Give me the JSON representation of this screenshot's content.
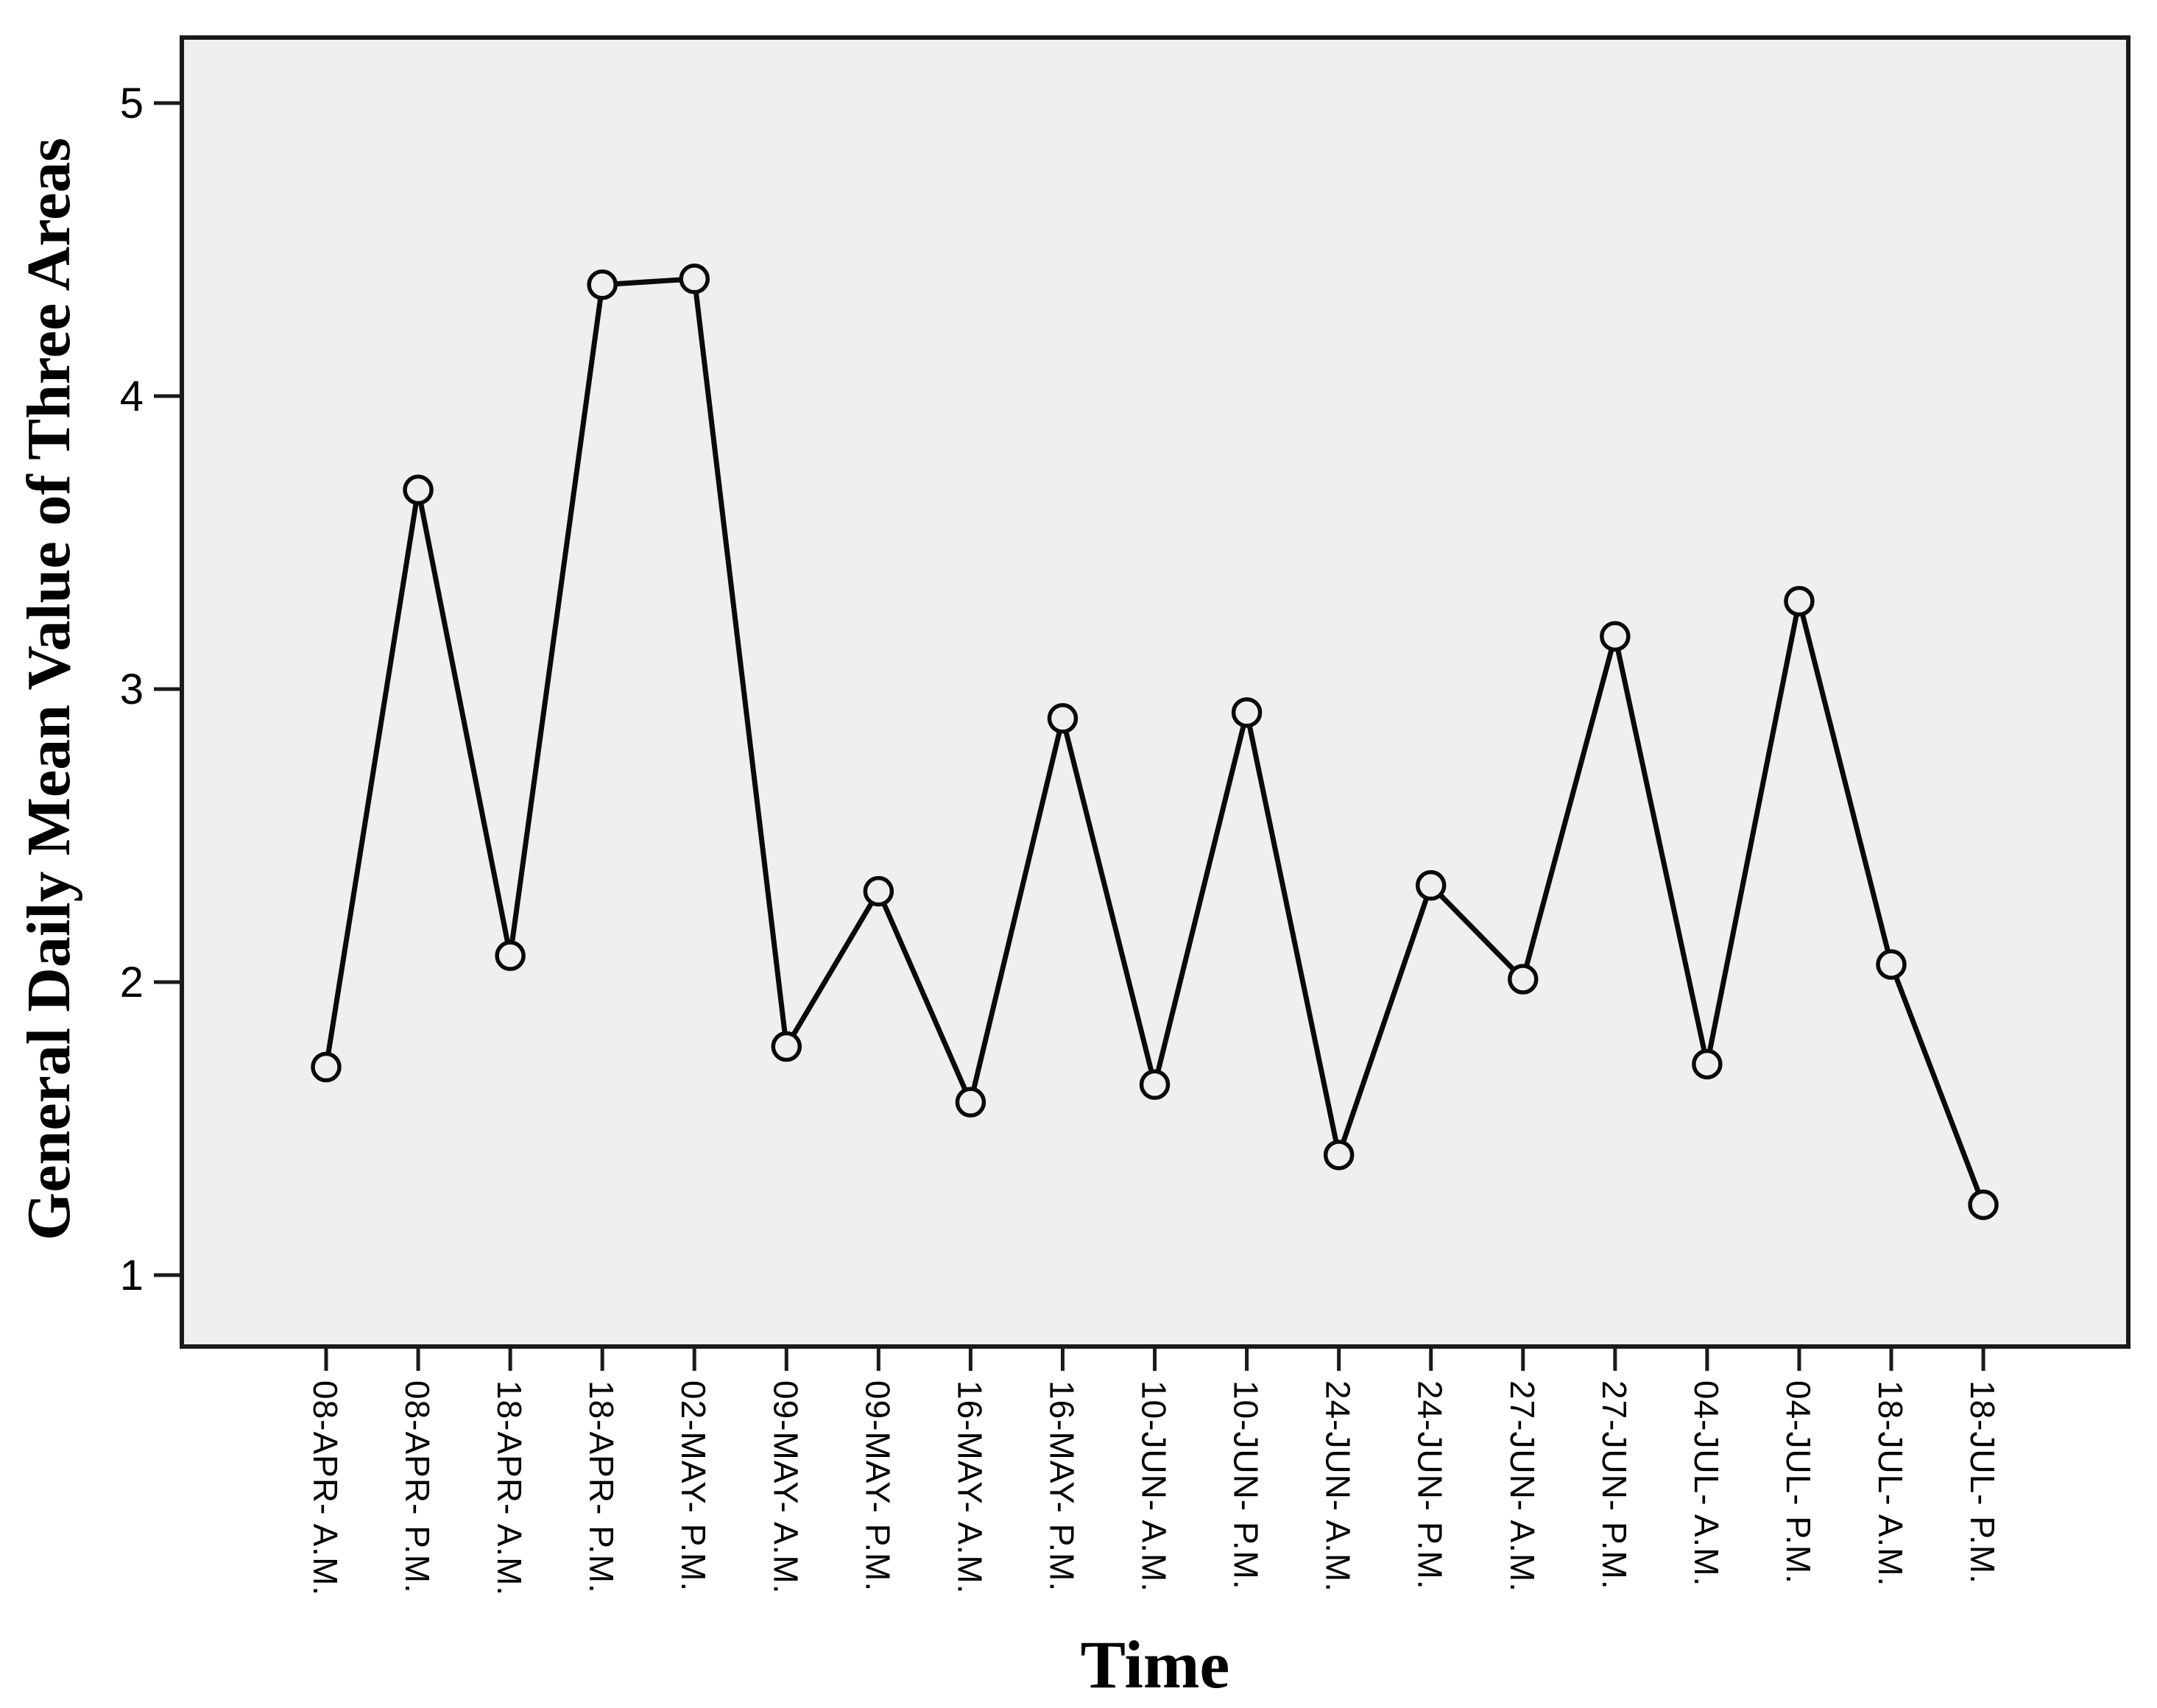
{
  "chart_data": {
    "type": "line",
    "title": "",
    "xlabel": "Time",
    "ylabel": "General Daily Mean Value of Three Areas",
    "categories": [
      "08-APR- A.M.",
      "08-APR- P.M.",
      "18-APR- A.M.",
      "18-APR- P.M.",
      "02-MAY- P.M.",
      "09-MAY- A.M.",
      "09-MAY- P.M.",
      "16-MAY- A.M.",
      "16-MAY- P.M.",
      "10-JUN- A.M.",
      "10-JUN- P.M.",
      "24-JUN- A.M.",
      "24-JUN- P.M.",
      "27-JUN- A.M.",
      "27-JUN- P.M.",
      "04-JUL- A.M.",
      "04-JUL- P.M.",
      "18-JUL- A.M.",
      "18-JUL- P.M."
    ],
    "series": [
      {
        "name": "General Daily Mean Value of Three Areas",
        "values": [
          1.71,
          3.68,
          2.09,
          4.38,
          4.4,
          1.78,
          2.31,
          1.59,
          2.9,
          1.65,
          2.92,
          1.41,
          2.33,
          2.01,
          3.18,
          1.72,
          3.3,
          2.06,
          1.24
        ]
      }
    ],
    "yticks": [
      1,
      2,
      3,
      4,
      5
    ],
    "ylim": [
      0.76,
      5.22
    ],
    "grid": false,
    "legend": false,
    "marker": "open-circle",
    "x_tick_label_rotation_deg": 90,
    "colors": {
      "line": "#0a0a0a",
      "marker_stroke": "#0a0a0a",
      "plot_background": "#efefef",
      "page_background": "#ffffff",
      "axis_border": "#1a1a1a",
      "text": "#000000"
    }
  }
}
